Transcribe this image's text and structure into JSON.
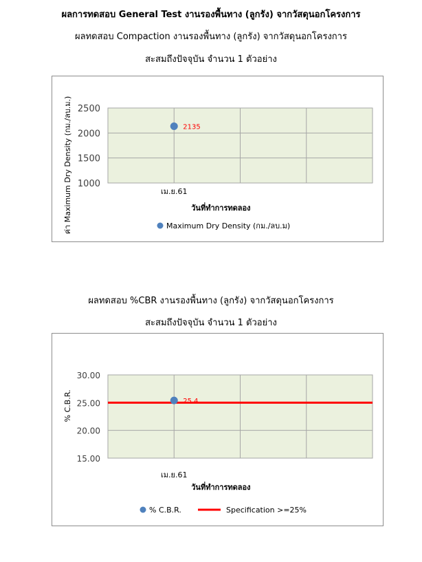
{
  "titles": {
    "main": "ผลการทดสอบ General Test งานรองพื้นทาง (ลูกรัง) จากวัสดุนอกโครงการ",
    "compaction": "ผลทดสอบ Compaction งานรองพื้นทาง (ลูกรัง) จากวัสดุนอกโครงการ",
    "compaction_count": "สะสมถึงปัจจุบัน จำนวน 1 ตัวอย่าง",
    "cbr": "ผลทดสอบ %CBR งานรองพื้นทาง (ลูกรัง) จากวัสดุนอกโครงการ",
    "cbr_count": "สะสมถึงปัจจุบัน จำนวน 1 ตัวอย่าง"
  },
  "colors": {
    "plot_bg": "#ebf1de",
    "grid": "#a6a6a6",
    "point": "#4f81bd",
    "label": "#ff0000",
    "spec": "#ff0000"
  },
  "chart_data": [
    {
      "type": "scatter",
      "ylabel": "ค่า Maximum Dry Density (กม./ลบ.ม.)",
      "xlabel": "วันที่ทำการทดลอง",
      "categories": [
        "เม.ย.61"
      ],
      "ylim": [
        1000,
        2500
      ],
      "yticks": [
        "1000",
        "1500",
        "2000",
        "2500"
      ],
      "grid": true,
      "legend_position": "bottom",
      "series": [
        {
          "name": "Maximum Dry Density (กม./ลบ.ม)",
          "values": [
            2135
          ],
          "labels": [
            "2135"
          ]
        }
      ]
    },
    {
      "type": "scatter",
      "ylabel": "% C.B.R.",
      "xlabel": "วันที่ทำการทดลอง",
      "categories": [
        "เม.ย.61"
      ],
      "ylim": [
        15,
        30
      ],
      "yticks": [
        "15.00",
        "20.00",
        "25.00",
        "30.00"
      ],
      "grid": true,
      "legend_position": "bottom",
      "series": [
        {
          "name": "% C.B.R.",
          "values": [
            25.4
          ],
          "labels": [
            "25.4"
          ]
        }
      ],
      "reference_line": {
        "name": "Specification >=25%",
        "value": 25
      }
    }
  ]
}
